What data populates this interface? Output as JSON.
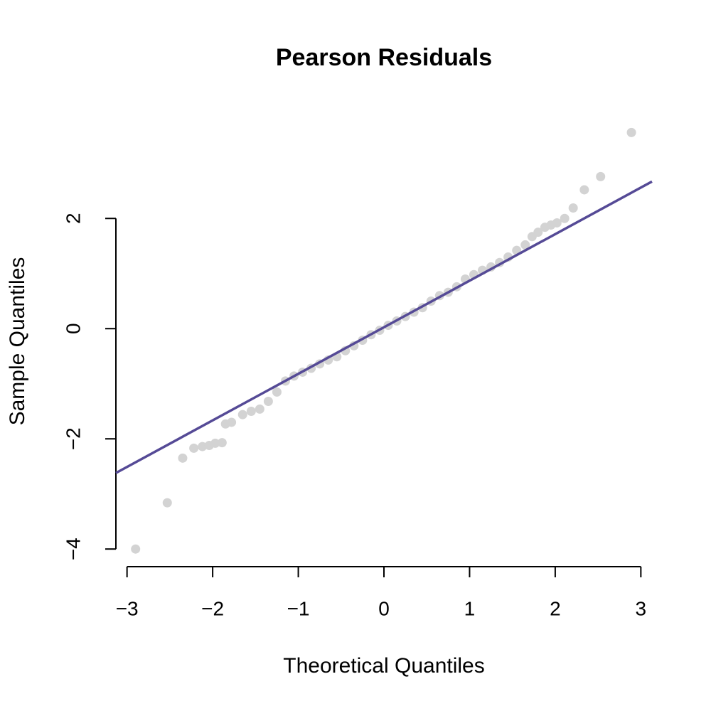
{
  "chart_data": {
    "type": "scatter",
    "title": "Pearson Residuals",
    "x_label": "Theoretical Quantiles",
    "y_label": "Sample Quantiles",
    "x": [
      -2.9,
      -2.53,
      -2.35,
      -2.22,
      -2.12,
      -2.04,
      -1.97,
      -1.89,
      -1.85,
      -1.78,
      -1.65,
      -1.55,
      -1.45,
      -1.35,
      -1.25,
      -1.15,
      -1.05,
      -0.95,
      -0.85,
      -0.75,
      -0.65,
      -0.55,
      -0.45,
      -0.35,
      -0.25,
      -0.15,
      -0.05,
      0.05,
      0.15,
      0.25,
      0.35,
      0.45,
      0.55,
      0.65,
      0.75,
      0.85,
      0.95,
      1.05,
      1.15,
      1.25,
      1.35,
      1.45,
      1.55,
      1.65,
      1.73,
      1.8,
      1.88,
      1.95,
      2.02,
      2.11,
      2.21,
      2.34,
      2.53,
      2.89
    ],
    "y": [
      -4.0,
      -3.16,
      -2.35,
      -2.17,
      -2.14,
      -2.12,
      -2.08,
      -2.07,
      -1.73,
      -1.7,
      -1.56,
      -1.5,
      -1.46,
      -1.32,
      -1.15,
      -0.95,
      -0.86,
      -0.79,
      -0.72,
      -0.64,
      -0.57,
      -0.51,
      -0.4,
      -0.31,
      -0.21,
      -0.11,
      -0.03,
      0.06,
      0.14,
      0.22,
      0.3,
      0.38,
      0.5,
      0.6,
      0.66,
      0.76,
      0.9,
      0.98,
      1.06,
      1.12,
      1.2,
      1.3,
      1.42,
      1.52,
      1.67,
      1.75,
      1.84,
      1.88,
      1.92,
      2.0,
      2.19,
      2.52,
      2.76,
      3.56
    ],
    "color": "#d3d3d3",
    "line": {
      "x": [
        -3.13,
        3.13
      ],
      "y": [
        -2.62,
        2.67
      ],
      "color": "#554a96"
    },
    "xlim": [
      -3.13,
      3.13
    ],
    "ylim": [
      -4.32,
      3.9
    ],
    "xticks": [
      {
        "value": -3,
        "label": "−3"
      },
      {
        "value": -2,
        "label": "−2"
      },
      {
        "value": -1,
        "label": "−1"
      },
      0,
      1,
      2,
      3
    ],
    "yticks": [
      {
        "value": -4,
        "label": "−4"
      },
      {
        "value": -2,
        "label": "−2"
      },
      0,
      2
    ]
  }
}
